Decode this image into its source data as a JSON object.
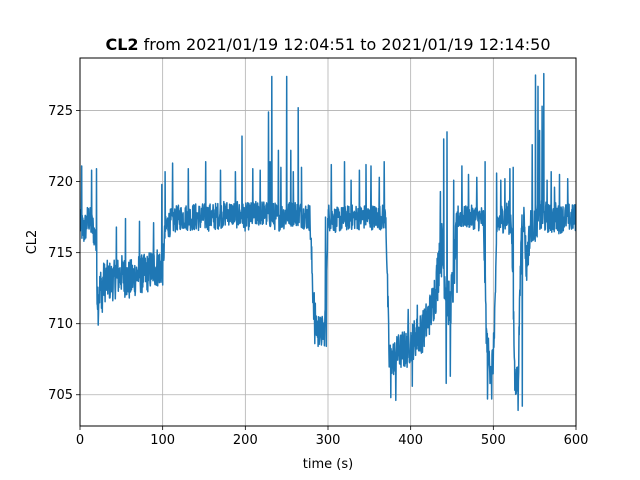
{
  "chart_data": {
    "type": "line",
    "title_bold": "CL2",
    "title_rest": " from 2021/01/19 12:04:51 to 2021/01/19 12:14:50",
    "xlabel": "time (s)",
    "ylabel": "CL2",
    "xlim": [
      0,
      600
    ],
    "ylim": [
      702.8,
      728.7
    ],
    "xticks": [
      0,
      100,
      200,
      300,
      400,
      500,
      600
    ],
    "yticks": [
      705,
      710,
      715,
      720,
      725
    ],
    "grid": true,
    "color": "#1f77b4",
    "series": [
      {
        "x": [
          0,
          5,
          10,
          15,
          19,
          21,
          25,
          30,
          40,
          50,
          60,
          70,
          80,
          90,
          100,
          103,
          106,
          120,
          140,
          160,
          180,
          200,
          220,
          240,
          260,
          278,
          282,
          285,
          290,
          296,
          300,
          302,
          310,
          330,
          350,
          370,
          374,
          378,
          385,
          395,
          405,
          415,
          425,
          432,
          436,
          440,
          447,
          452,
          456,
          460,
          470,
          480,
          488,
          492,
          496,
          500,
          505,
          512,
          518,
          522,
          526,
          530,
          534,
          537,
          540,
          545,
          550,
          555,
          560,
          565,
          570,
          575,
          580,
          585,
          590,
          595,
          600
        ],
        "y": [
          717,
          716.5,
          717.5,
          716.8,
          716,
          712,
          712.5,
          713,
          713,
          713.5,
          713,
          713.5,
          713.5,
          714,
          714,
          716.5,
          717,
          717.5,
          717.5,
          717.5,
          717.8,
          717.5,
          717.8,
          717.5,
          717.8,
          717.5,
          712,
          710,
          709.5,
          709.5,
          717.5,
          717.5,
          717.3,
          717.5,
          717.5,
          717.5,
          707.5,
          707.5,
          708,
          708.2,
          709,
          709.5,
          711,
          713,
          716,
          714,
          711,
          713,
          717.5,
          717.5,
          717.5,
          717.5,
          717.3,
          708.5,
          707,
          707.5,
          717,
          717.5,
          717.5,
          717.3,
          706,
          706,
          717,
          717.5,
          714,
          717,
          716.8,
          717.5,
          717.5,
          717.5,
          717.3,
          717.5,
          717.3,
          717.5,
          717.5,
          717.4,
          717.5
        ],
        "band": [
          2.2,
          2.4,
          2.0,
          2.2,
          2.0,
          2.8,
          3.2,
          3.0,
          2.8,
          2.8,
          3.0,
          2.8,
          2.8,
          3.0,
          2.8,
          2.0,
          2.0,
          1.8,
          2.0,
          2.0,
          1.8,
          2.0,
          1.8,
          2.0,
          1.8,
          2.0,
          2.8,
          2.5,
          2.2,
          2.2,
          2.0,
          2.0,
          1.8,
          1.8,
          1.8,
          1.8,
          2.6,
          2.6,
          2.6,
          2.8,
          2.8,
          3.0,
          3.0,
          4.0,
          4.5,
          4.0,
          3.5,
          3.5,
          1.8,
          1.6,
          1.6,
          1.8,
          2.0,
          3.0,
          2.5,
          2.5,
          2.4,
          2.2,
          2.4,
          2.2,
          2.5,
          2.5,
          2.2,
          2.0,
          3.0,
          2.4,
          2.4,
          2.2,
          2.4,
          2.2,
          2.0,
          2.2,
          2.0,
          2.0,
          2.0,
          2.0,
          2.0
        ],
        "peaks": [
          [
            2,
            721.1
          ],
          [
            14,
            720.8
          ],
          [
            20,
            720.9
          ],
          [
            22,
            709.9
          ],
          [
            27,
            710.8
          ],
          [
            44,
            716.8
          ],
          [
            55,
            717.4
          ],
          [
            72,
            717.2
          ],
          [
            89,
            717.1
          ],
          [
            99,
            719.8
          ],
          [
            103,
            720.7
          ],
          [
            112,
            721.3
          ],
          [
            131,
            720.9
          ],
          [
            152,
            721.4
          ],
          [
            170,
            720.8
          ],
          [
            188,
            720.7
          ],
          [
            196,
            723.2
          ],
          [
            209,
            720.9
          ],
          [
            218,
            720.8
          ],
          [
            228,
            724.9
          ],
          [
            230,
            721.4
          ],
          [
            232,
            727.4
          ],
          [
            240,
            722.2
          ],
          [
            243,
            721.0
          ],
          [
            250,
            727.4
          ],
          [
            255,
            722.2
          ],
          [
            258,
            720.7
          ],
          [
            264,
            725.2
          ],
          [
            268,
            721.0
          ],
          [
            284,
            708.6
          ],
          [
            288,
            708.4
          ],
          [
            292,
            708.5
          ],
          [
            298,
            708.4
          ],
          [
            297,
            717.5
          ],
          [
            304,
            721.2
          ],
          [
            320,
            721.4
          ],
          [
            328,
            720.1
          ],
          [
            338,
            720.8
          ],
          [
            346,
            721.2
          ],
          [
            352,
            721.1
          ],
          [
            362,
            720.3
          ],
          [
            368,
            721.4
          ],
          [
            376,
            704.8
          ],
          [
            382,
            704.6
          ],
          [
            390,
            709.4
          ],
          [
            397,
            711.0
          ],
          [
            402,
            705.6
          ],
          [
            408,
            711.3
          ],
          [
            418,
            710.5
          ],
          [
            430,
            711.3
          ],
          [
            436,
            719.3
          ],
          [
            440,
            723.0
          ],
          [
            443,
            705.8
          ],
          [
            444,
            723.5
          ],
          [
            448,
            706.3
          ],
          [
            452,
            720.1
          ],
          [
            456,
            712.2
          ],
          [
            462,
            721.1
          ],
          [
            470,
            720.5
          ],
          [
            480,
            720.3
          ],
          [
            490,
            721.4
          ],
          [
            493,
            704.7
          ],
          [
            498,
            704.7
          ],
          [
            504,
            720.6
          ],
          [
            509,
            720.1
          ],
          [
            514,
            720.2
          ],
          [
            520,
            720.9
          ],
          [
            524,
            721.0
          ],
          [
            530,
            703.9
          ],
          [
            535,
            704.2
          ],
          [
            538,
            716.8
          ],
          [
            544,
            715.3
          ],
          [
            547,
            722.6
          ],
          [
            551,
            727.5
          ],
          [
            554,
            726.7
          ],
          [
            556,
            723.6
          ],
          [
            559,
            725.3
          ],
          [
            561,
            727.6
          ],
          [
            565,
            720.1
          ],
          [
            570,
            720.7
          ],
          [
            574,
            719.6
          ],
          [
            580,
            720.5
          ],
          [
            590,
            720.2
          ]
        ]
      }
    ]
  }
}
